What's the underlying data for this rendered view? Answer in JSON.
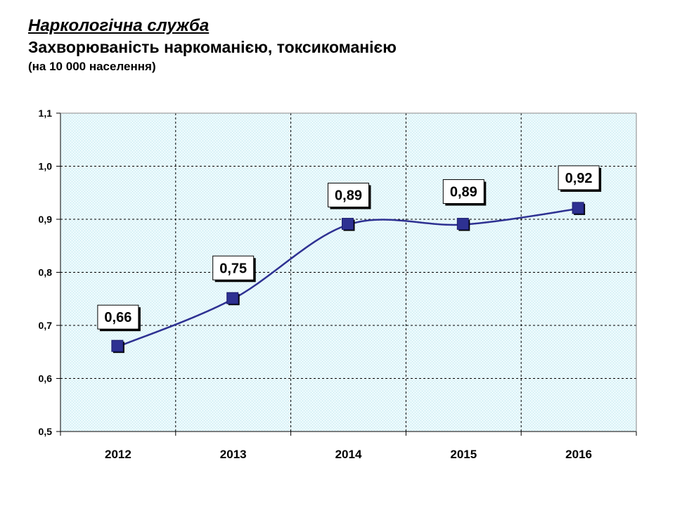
{
  "header": {
    "service": "Наркологічна служба",
    "title": "Захворюваність  наркоманією, токсикоманією",
    "subtitle": "(на 10 000 населення)"
  },
  "chart_data": {
    "type": "line",
    "categories": [
      "2012",
      "2013",
      "2014",
      "2015",
      "2016"
    ],
    "series": [
      {
        "values": [
          0.66,
          0.75,
          0.89,
          0.89,
          0.92
        ]
      }
    ],
    "data_labels": [
      "0,66",
      "0,75",
      "0,89",
      "0,89",
      "0,92"
    ],
    "y_ticks": [
      0.5,
      0.6,
      0.7,
      0.8,
      0.9,
      1.0,
      1.1
    ],
    "y_tick_labels": [
      "0,5",
      "0,6",
      "0,7",
      "0,8",
      "0,9",
      "1,0",
      "1,1"
    ],
    "ylim": [
      0.5,
      1.1
    ],
    "grid": true,
    "legend": "none",
    "colors": {
      "line": "#2e3192",
      "marker": "#2e3192",
      "marker_shadow": "#000000",
      "plot_background": "#e8f8fb",
      "grid": "#000000"
    }
  }
}
